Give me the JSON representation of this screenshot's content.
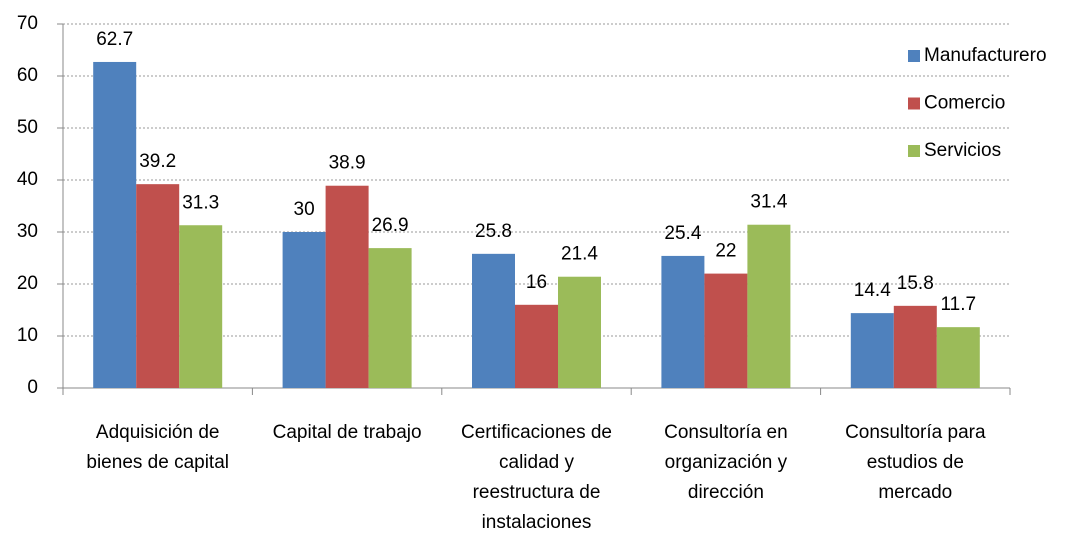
{
  "chart_data": {
    "type": "bar",
    "categories": [
      "Adquisición de bienes de capital",
      "Capital de trabajo",
      "Certificaciones de calidad y reestructura de instalaciones",
      "Consultoría en organización y dirección",
      "Consultoría para estudios de mercado"
    ],
    "series": [
      {
        "name": "Manufacturero",
        "color": "#4f81bd",
        "values": [
          62.7,
          30,
          25.8,
          25.4,
          14.4
        ]
      },
      {
        "name": "Comercio",
        "color": "#c0504d",
        "values": [
          39.2,
          38.9,
          16,
          22,
          15.8
        ]
      },
      {
        "name": "Servicios",
        "color": "#9bbb59",
        "values": [
          31.3,
          26.9,
          21.4,
          31.4,
          11.7
        ]
      }
    ],
    "ylim": [
      0,
      70
    ],
    "yticks": [
      0,
      10,
      20,
      30,
      40,
      50,
      60,
      70
    ],
    "grid": true,
    "legend": "right"
  }
}
